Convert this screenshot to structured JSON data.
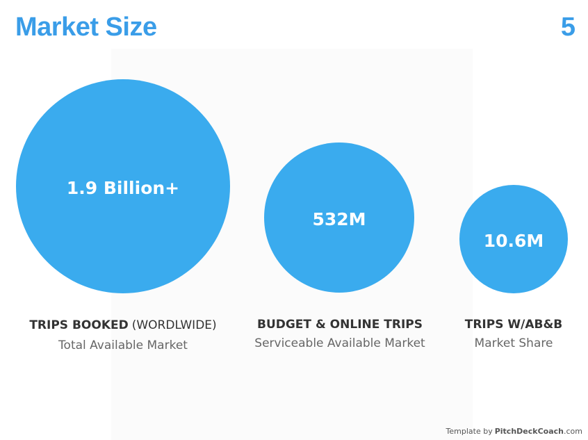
{
  "header": {
    "title": "Market Size",
    "page": "5"
  },
  "items": [
    {
      "value": "1.9 Billion+",
      "label": "TRIPS BOOKED",
      "label_note": "(WORDLWIDE)",
      "subtitle": "Total Available Market"
    },
    {
      "value": "532M",
      "label": "BUDGET & ONLINE TRIPS",
      "subtitle": "Serviceable Available Market"
    },
    {
      "value": "10.6M",
      "label": "TRIPS W/AB&B",
      "subtitle": "Market Share"
    }
  ],
  "footer": {
    "prefix": "Template by",
    "brand": "PitchDeckCoach",
    "suffix": ".com"
  }
}
